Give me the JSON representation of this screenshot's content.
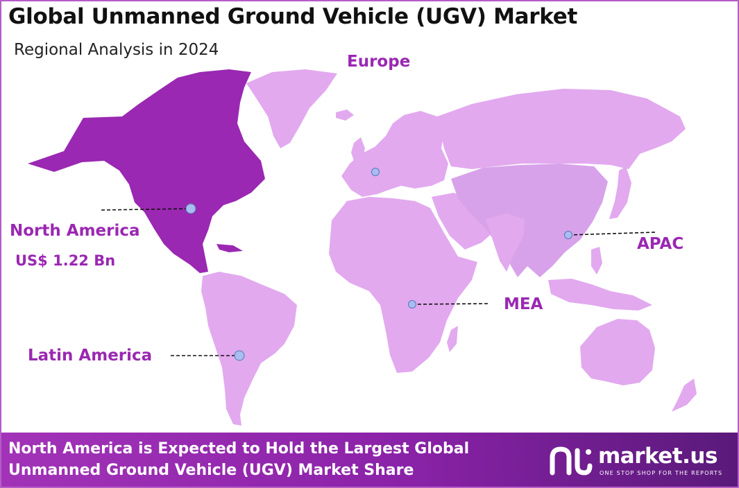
{
  "title": "Global Unmanned Ground Vehicle (UGV) Market",
  "subtitle": "Regional Analysis in 2024",
  "regions": {
    "europe": "Europe",
    "north_america": "North America",
    "north_america_value": "US$ 1.22 Bn",
    "apac": "APAC",
    "mea": "MEA",
    "latin_america": "Latin America"
  },
  "footer": {
    "line1": "North America is Expected to Hold the Largest Global",
    "line2": "Unmanned Ground Vehicle (UGV) Market Share"
  },
  "brand": {
    "name": "market.us",
    "tagline": "ONE STOP SHOP FOR THE REPORTS",
    "icon": "market-us-logo-icon"
  },
  "colors": {
    "highlight": "#9a28b2",
    "land": "#e2a9ef",
    "apac_land": "#d8a2ea",
    "marker": "#a9bdf0"
  }
}
